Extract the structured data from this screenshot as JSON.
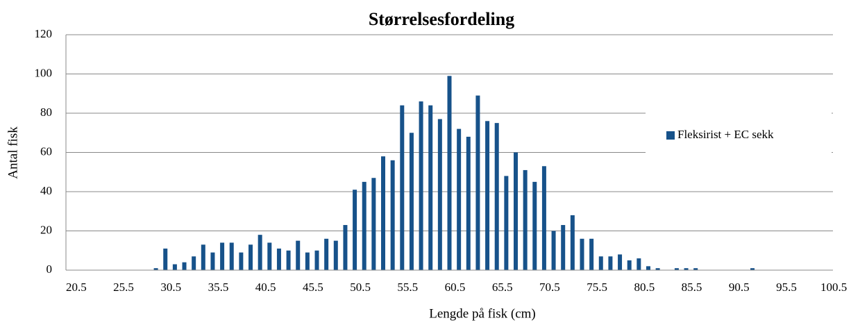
{
  "chart_data": {
    "type": "bar",
    "title": "Størrelsesfordeling",
    "x_label": "Lengde på fisk (cm)",
    "y_label": "Antal fisk",
    "categories": [
      "20.5",
      null,
      null,
      null,
      null,
      "25.5",
      null,
      null,
      null,
      null,
      "30.5",
      null,
      null,
      null,
      null,
      "35.5",
      null,
      null,
      null,
      null,
      "40.5",
      null,
      null,
      null,
      null,
      "45.5",
      null,
      null,
      null,
      null,
      "50.5",
      null,
      null,
      null,
      null,
      "55.5",
      null,
      null,
      null,
      null,
      "60.5",
      null,
      null,
      null,
      null,
      "65.5",
      null,
      null,
      null,
      null,
      "70.5",
      null,
      null,
      null,
      null,
      "75.5",
      null,
      null,
      null,
      null,
      "80.5",
      null,
      null,
      null,
      null,
      "85.5",
      null,
      null,
      null,
      null,
      "90.5",
      null,
      null,
      null,
      null,
      "95.5",
      null,
      null,
      null,
      null,
      "100.5"
    ],
    "series": [
      {
        "name": "Fleksirist + EC sekk",
        "color": "#17528a",
        "values": [
          0,
          0,
          0,
          0,
          0,
          0,
          0,
          0,
          0,
          1,
          11,
          3,
          4,
          7,
          13,
          9,
          14,
          14,
          9,
          13,
          18,
          14,
          11,
          10,
          15,
          9,
          10,
          16,
          15,
          23,
          41,
          45,
          47,
          58,
          56,
          84,
          70,
          86,
          84,
          77,
          99,
          72,
          68,
          89,
          76,
          75,
          48,
          60,
          51,
          45,
          53,
          20,
          23,
          28,
          16,
          16,
          7,
          7,
          8,
          5,
          6,
          2,
          1,
          0,
          1,
          1,
          1,
          0,
          0,
          0,
          0,
          0,
          1,
          0,
          0,
          0,
          0,
          0,
          0,
          0,
          0
        ]
      }
    ],
    "ylim": [
      0,
      120
    ],
    "yticks": [
      0,
      20,
      40,
      60,
      80,
      100,
      120
    ],
    "grid": true,
    "legend": "right"
  }
}
